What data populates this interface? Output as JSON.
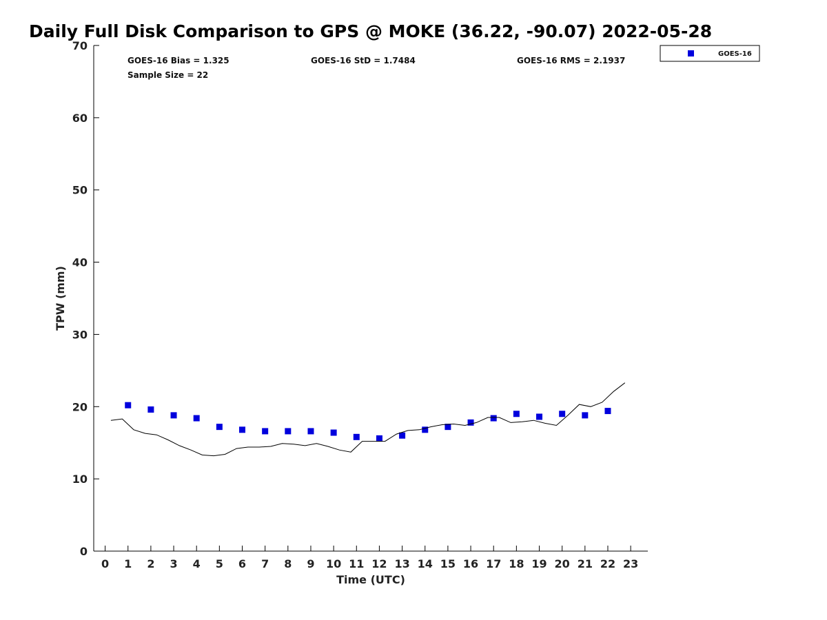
{
  "chart_data": {
    "type": "scatter",
    "title": "Daily Full Disk Comparison to GPS @ MOKE (36.22, -90.07) 2022-05-28",
    "xlabel": "Time (UTC)",
    "ylabel": "TPW (mm)",
    "xlim": [
      -0.5,
      23.75
    ],
    "ylim": [
      0,
      70
    ],
    "xticks": [
      0,
      1,
      2,
      3,
      4,
      5,
      6,
      7,
      8,
      9,
      10,
      11,
      12,
      13,
      14,
      15,
      16,
      17,
      18,
      19,
      20,
      21,
      22,
      23
    ],
    "yticks": [
      0,
      10,
      20,
      30,
      40,
      50,
      60,
      70
    ],
    "grid": false,
    "legend_position": "top-right, outside plot",
    "stats": {
      "bias": "GOES-16 Bias = 1.325",
      "std": "GOES-16 StD = 1.7484",
      "rms": "GOES-16 RMS = 2.1937",
      "sample": "Sample Size = 22"
    },
    "series": [
      {
        "name": "GOES-16",
        "kind": "markers",
        "marker": "square",
        "color": "#0000dd",
        "x": [
          1,
          2,
          3,
          4,
          5,
          6,
          7,
          8,
          9,
          10,
          11,
          12,
          13,
          14,
          15,
          16,
          17,
          18,
          19,
          20,
          21,
          22
        ],
        "y": [
          20.2,
          19.6,
          18.8,
          18.4,
          17.2,
          16.8,
          16.6,
          16.6,
          16.6,
          16.4,
          15.8,
          15.6,
          16.0,
          16.8,
          17.2,
          17.8,
          18.4,
          19.0,
          18.6,
          19.0,
          18.8,
          19.4
        ]
      },
      {
        "kind": "line",
        "color": "#000000",
        "x": [
          0.25,
          0.75,
          1.25,
          1.75,
          2.25,
          2.75,
          3.25,
          3.75,
          4.25,
          4.75,
          5.25,
          5.75,
          6.25,
          6.75,
          7.25,
          7.75,
          8.25,
          8.75,
          9.25,
          9.75,
          10.25,
          10.75,
          11.25,
          11.75,
          12.25,
          12.75,
          13.25,
          13.75,
          14.25,
          14.75,
          15.25,
          15.75,
          16.25,
          16.75,
          17.25,
          17.75,
          18.25,
          18.75,
          19.25,
          19.75,
          20.25,
          20.75,
          21.25,
          21.75,
          22.25,
          22.75
        ],
        "y": [
          18.1,
          18.3,
          16.8,
          16.3,
          16.1,
          15.4,
          14.6,
          14.0,
          13.3,
          13.2,
          13.4,
          14.2,
          14.4,
          14.4,
          14.5,
          14.9,
          14.8,
          14.6,
          14.9,
          14.5,
          14.0,
          13.7,
          15.2,
          15.2,
          15.2,
          16.2,
          16.7,
          16.8,
          17.2,
          17.5,
          17.6,
          17.4,
          17.8,
          18.5,
          18.5,
          17.8,
          17.9,
          18.1,
          17.7,
          17.4,
          18.8,
          20.3,
          20.0,
          20.6,
          22.1,
          23.3
        ]
      }
    ]
  }
}
